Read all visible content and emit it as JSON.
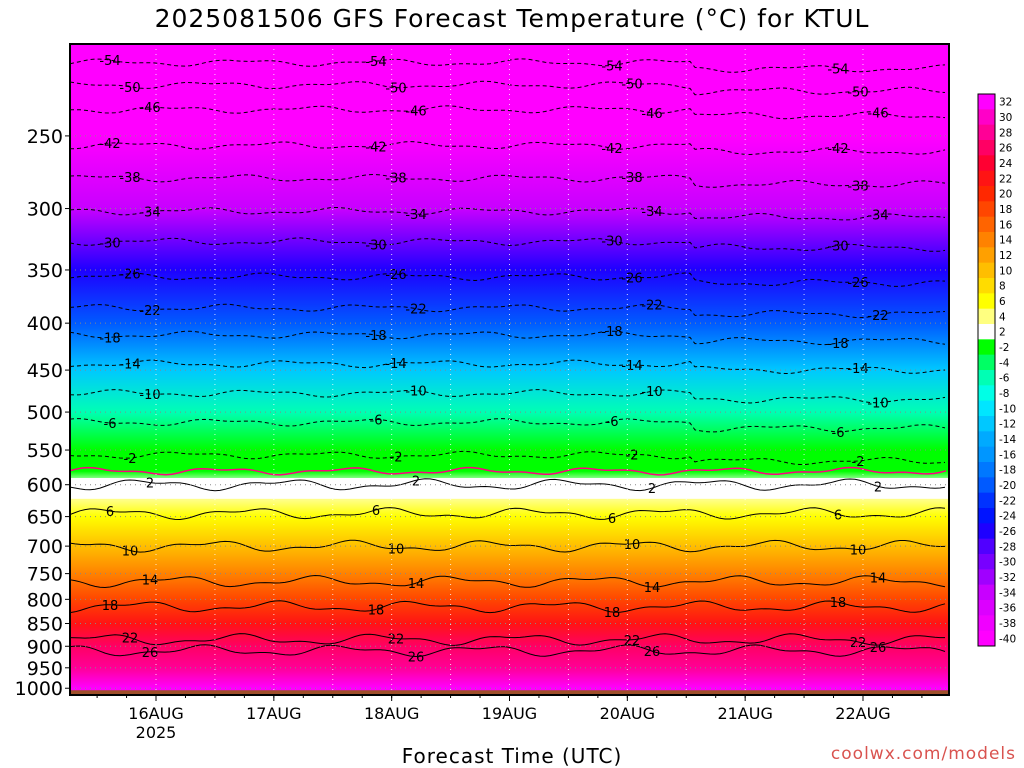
{
  "title": "2025081506 GFS Forecast Temperature (°C) for KTUL",
  "credit": "coolwx.com/models",
  "chart_data": {
    "type": "heatmap",
    "title": "2025081506 GFS Forecast Temperature (°C) for KTUL",
    "xlabel": "Forecast Time (UTC)",
    "ylabel": "",
    "y_scale": "log-pressure (hPa, decreasing upward)",
    "ylim": [
      1000,
      200
    ],
    "y_ticks": [
      250,
      300,
      350,
      400,
      450,
      500,
      550,
      600,
      650,
      700,
      750,
      800,
      850,
      900,
      950,
      1000
    ],
    "x_ticks": [
      {
        "label": "16AUG",
        "sub": "2025",
        "day": 16
      },
      {
        "label": "17AUG",
        "sub": "",
        "day": 17
      },
      {
        "label": "18AUG",
        "sub": "",
        "day": 18
      },
      {
        "label": "19AUG",
        "sub": "",
        "day": 19
      },
      {
        "label": "20AUG",
        "sub": "",
        "day": 20
      },
      {
        "label": "21AUG",
        "sub": "",
        "day": 21
      },
      {
        "label": "22AUG",
        "sub": "",
        "day": 22
      }
    ],
    "x_range_days": [
      15.27,
      22.73
    ],
    "colorbar": {
      "levels": [
        32,
        30,
        28,
        26,
        24,
        22,
        20,
        18,
        16,
        14,
        12,
        10,
        8,
        6,
        4,
        2,
        -2,
        -4,
        -6,
        -8,
        -10,
        -12,
        -14,
        -16,
        -18,
        -20,
        -22,
        -24,
        -26,
        -28,
        -30,
        -32,
        -34,
        -36,
        -38,
        -40
      ],
      "colors": [
        "#ff00ff",
        "#ff00c8",
        "#ff0096",
        "#ff0064",
        "#ff0032",
        "#ff1414",
        "#ff2800",
        "#ff4600",
        "#ff6400",
        "#ff8200",
        "#ffa000",
        "#ffbe00",
        "#ffdc00",
        "#ffff00",
        "#ffff80",
        "#ffffff",
        "#00ff00",
        "#00ff64",
        "#00ffb4",
        "#00ffe6",
        "#00e6ff",
        "#00c8ff",
        "#00aaff",
        "#0096ff",
        "#0078ff",
        "#005aff",
        "#0032ff",
        "#0014ff",
        "#1e00ff",
        "#5000ff",
        "#7800ff",
        "#a000ff",
        "#c800ff",
        "#dc00ff",
        "#f000ff",
        "#ff00ff"
      ]
    },
    "isotherms": [
      {
        "value": -54,
        "p": 208
      },
      {
        "value": -50,
        "p": 220
      },
      {
        "value": -46,
        "p": 234
      },
      {
        "value": -42,
        "p": 256
      },
      {
        "value": -38,
        "p": 278
      },
      {
        "value": -34,
        "p": 302
      },
      {
        "value": -30,
        "p": 326
      },
      {
        "value": -26,
        "p": 356
      },
      {
        "value": -22,
        "p": 385
      },
      {
        "value": -18,
        "p": 412
      },
      {
        "value": -14,
        "p": 443
      },
      {
        "value": -10,
        "p": 477
      },
      {
        "value": -6,
        "p": 513
      },
      {
        "value": -2,
        "p": 557
      },
      {
        "value": 2,
        "p": 600
      },
      {
        "value": 6,
        "p": 645
      },
      {
        "value": 10,
        "p": 700
      },
      {
        "value": 14,
        "p": 765
      },
      {
        "value": 18,
        "p": 815
      },
      {
        "value": 22,
        "p": 885
      },
      {
        "value": 26,
        "p": 910
      }
    ],
    "freezing_level_hPa": 580,
    "surface_hPa": 990,
    "grid": true
  }
}
